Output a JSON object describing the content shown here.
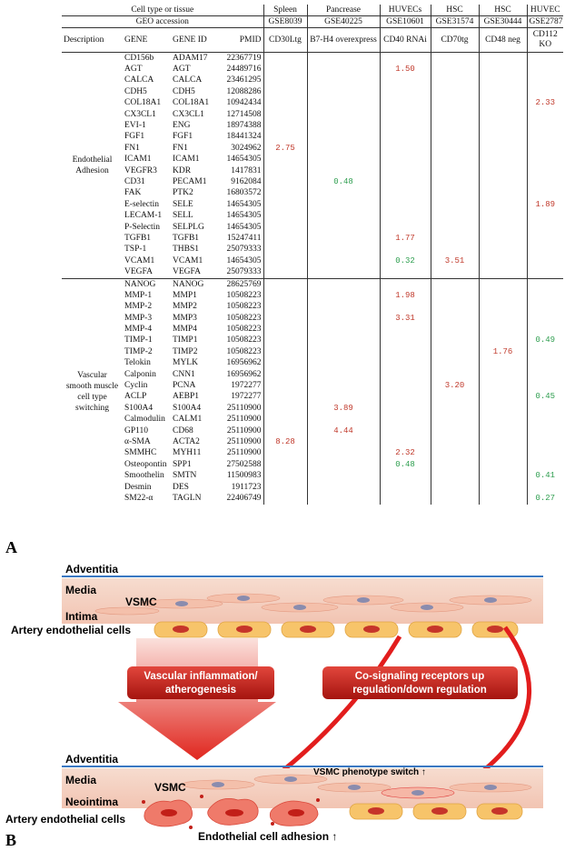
{
  "panel_labels": [
    "A",
    "B"
  ],
  "colors": {
    "up": "#c0392b",
    "down": "#2e9e4f"
  },
  "table": {
    "header": {
      "cell_type_label": "Cell type or tissue",
      "geo_label": "GEO accession",
      "columns": [
        "Description",
        "GENE",
        "GENE ID",
        "PMID"
      ],
      "cell_types": [
        "Spleen",
        "Pancrease",
        "HUVECs",
        "HSC",
        "HSC",
        "HUVEC"
      ],
      "geo": [
        "GSE8039",
        "GSE40225",
        "GSE10601",
        "GSE31574",
        "GSE30444",
        "GSE27871"
      ],
      "conditions": [
        "CD30Ltg",
        "B7-H4 overexpress",
        "CD40 RNAi",
        "CD70tg",
        "CD48 neg",
        "CD112 KO"
      ]
    },
    "groups": [
      {
        "description": "Endothelial Adhesion",
        "rows": [
          [
            "CD156b",
            "ADAM17",
            "22367719",
            null,
            null,
            null,
            null,
            null,
            null
          ],
          [
            "AGT",
            "AGT",
            "24489716",
            null,
            null,
            "1.50",
            null,
            null,
            null
          ],
          [
            "CALCA",
            "CALCA",
            "23461295",
            null,
            null,
            null,
            null,
            null,
            null
          ],
          [
            "CDH5",
            "CDH5",
            "12088286",
            null,
            null,
            null,
            null,
            null,
            null
          ],
          [
            "COL18A1",
            "COL18A1",
            "10942434",
            null,
            null,
            null,
            null,
            null,
            "2.33"
          ],
          [
            "CX3CL1",
            "CX3CL1",
            "12714508",
            null,
            null,
            null,
            null,
            null,
            null
          ],
          [
            "EVI-1",
            "ENG",
            "18974388",
            null,
            null,
            null,
            null,
            null,
            null
          ],
          [
            "FGF1",
            "FGF1",
            "18441324",
            null,
            null,
            null,
            null,
            null,
            null
          ],
          [
            "FN1",
            "FN1",
            "3024962",
            "2.75",
            null,
            null,
            null,
            null,
            null
          ],
          [
            "ICAM1",
            "ICAM1",
            "14654305",
            null,
            null,
            null,
            null,
            null,
            null
          ],
          [
            "VEGFR3",
            "KDR",
            "1417831",
            null,
            null,
            null,
            null,
            null,
            null
          ],
          [
            "CD31",
            "PECAM1",
            "9162084",
            null,
            "0.48",
            null,
            null,
            null,
            null
          ],
          [
            "FAK",
            "PTK2",
            "16803572",
            null,
            null,
            null,
            null,
            null,
            null
          ],
          [
            "E-selectin",
            "SELE",
            "14654305",
            null,
            null,
            null,
            null,
            null,
            "1.89"
          ],
          [
            "LECAM-1",
            "SELL",
            "14654305",
            null,
            null,
            null,
            null,
            null,
            null
          ],
          [
            "P-Selectin",
            "SELPLG",
            "14654305",
            null,
            null,
            null,
            null,
            null,
            null
          ],
          [
            "TGFB1",
            "TGFB1",
            "15247411",
            null,
            null,
            "1.77",
            null,
            null,
            null
          ],
          [
            "TSP-1",
            "THBS1",
            "25079333",
            null,
            null,
            null,
            null,
            null,
            null
          ],
          [
            "VCAM1",
            "VCAM1",
            "14654305",
            null,
            null,
            "0.32",
            "3.51",
            null,
            null
          ],
          [
            "VEGFA",
            "VEGFA",
            "25079333",
            null,
            null,
            null,
            null,
            null,
            null
          ]
        ]
      },
      {
        "description": "Vascular smooth muscle cell type switching",
        "rows": [
          [
            "NANOG",
            "NANOG",
            "28625769",
            null,
            null,
            null,
            null,
            null,
            null
          ],
          [
            "MMP-1",
            "MMP1",
            "10508223",
            null,
            null,
            "1.98",
            null,
            null,
            null
          ],
          [
            "MMP-2",
            "MMP2",
            "10508223",
            null,
            null,
            null,
            null,
            null,
            null
          ],
          [
            "MMP-3",
            "MMP3",
            "10508223",
            null,
            null,
            "3.31",
            null,
            null,
            null
          ],
          [
            "MMP-4",
            "MMP4",
            "10508223",
            null,
            null,
            null,
            null,
            null,
            null
          ],
          [
            "TIMP-1",
            "TIMP1",
            "10508223",
            null,
            null,
            null,
            null,
            null,
            "0.49"
          ],
          [
            "TIMP-2",
            "TIMP2",
            "10508223",
            null,
            null,
            null,
            null,
            "1.76",
            null
          ],
          [
            "Telokin",
            "MYLK",
            "16956962",
            null,
            null,
            null,
            null,
            null,
            null
          ],
          [
            "Calponin",
            "CNN1",
            "16956962",
            null,
            null,
            null,
            null,
            null,
            null
          ],
          [
            "Cyclin",
            "PCNA",
            "1972277",
            null,
            null,
            null,
            "3.20",
            null,
            null
          ],
          [
            "ACLP",
            "AEBP1",
            "1972277",
            null,
            null,
            null,
            null,
            null,
            "0.45"
          ],
          [
            "S100A4",
            "S100A4",
            "25110900",
            null,
            "3.89",
            null,
            null,
            null,
            null
          ],
          [
            "Calmodulin",
            "CALM1",
            "25110900",
            null,
            null,
            null,
            null,
            null,
            null
          ],
          [
            "GP110",
            "CD68",
            "25110900",
            null,
            "4.44",
            null,
            null,
            null,
            null
          ],
          [
            "α-SMA",
            "ACTA2",
            "25110900",
            "8.28",
            null,
            null,
            null,
            null,
            null
          ],
          [
            "SMMHC",
            "MYH11",
            "25110900",
            null,
            null,
            "2.32",
            null,
            null,
            null
          ],
          [
            "Osteopontin",
            "SPP1",
            "27502588",
            null,
            null,
            "0.48",
            null,
            null,
            null
          ],
          [
            "Smoothelin",
            "SMTN",
            "11500983",
            null,
            null,
            null,
            null,
            null,
            "0.41"
          ],
          [
            "Desmin",
            "DES",
            "1911723",
            null,
            null,
            null,
            null,
            null,
            null
          ],
          [
            "SM22-α",
            "TAGLN",
            "22406749",
            null,
            null,
            null,
            null,
            null,
            "0.27"
          ]
        ]
      }
    ]
  },
  "diagram": {
    "top": {
      "adventitia": "Adventitia",
      "media": "Media",
      "vsmc": "VSMC",
      "intima": "Intima",
      "endothelial": "Artery endothelial cells"
    },
    "box_left": [
      "Vascular inflammation/",
      "atherogenesis"
    ],
    "box_right": [
      "Co-signaling receptors up",
      "regulation/down regulation"
    ],
    "bottom": {
      "adventitia": "Adventitia",
      "media": "Media",
      "vsmc": "VSMC",
      "neointima": "Neointima",
      "endothelial": "Artery endothelial cells",
      "switch": "VSMC phenotype switch ↑",
      "adhesion": "Endothelial cell adhesion ↑"
    }
  }
}
